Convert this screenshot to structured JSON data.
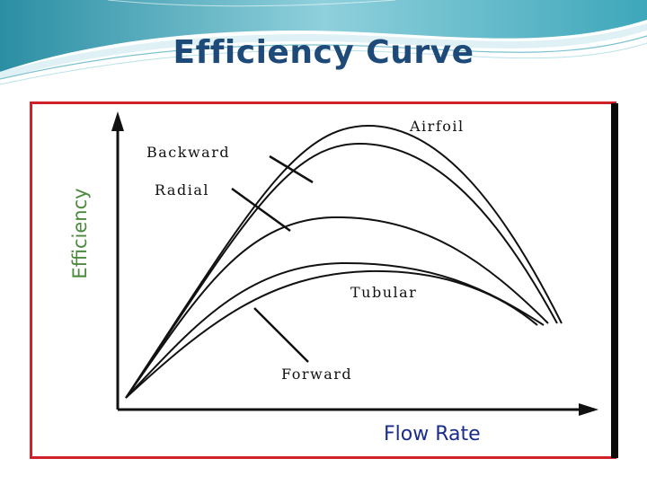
{
  "slide": {
    "title": "Efficiency Curve"
  },
  "figure": {
    "x_axis_title": "Flow Rate",
    "y_axis_title": "Efficiency",
    "curves": [
      {
        "id": "airfoil",
        "label": "Airfoil"
      },
      {
        "id": "backward",
        "label": "Backward"
      },
      {
        "id": "radial",
        "label": "Radial"
      },
      {
        "id": "tubular",
        "label": "Tubular"
      },
      {
        "id": "forward",
        "label": "Forward"
      }
    ]
  },
  "colors": {
    "title": "#1e4a7a",
    "frame": "#d0202a",
    "x_axis_title": "#1a2c8c",
    "y_axis_title": "#4b8a3e",
    "header_accent": "#3fa6b8"
  }
}
